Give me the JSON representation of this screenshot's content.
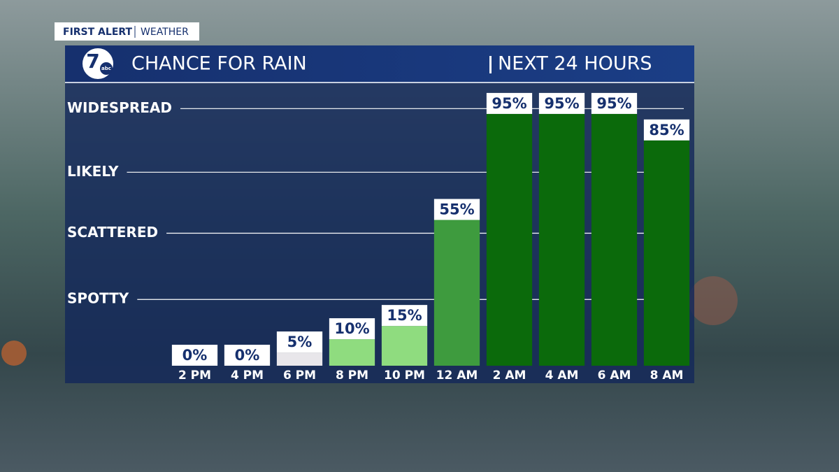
{
  "header": {
    "brand": "FIRST ALERT",
    "section": "WEATHER",
    "logo_number": "7",
    "logo_text": "abc"
  },
  "chart_data": {
    "type": "bar",
    "title": "CHANCE FOR RAIN",
    "subtitle": "NEXT 24 HOURS",
    "categories": [
      "2 PM",
      "4 PM",
      "6 PM",
      "8 PM",
      "10 PM",
      "12 AM",
      "2 AM",
      "4 AM",
      "6 AM",
      "8 AM"
    ],
    "values": [
      0,
      0,
      5,
      10,
      15,
      55,
      95,
      95,
      95,
      85
    ],
    "value_labels": [
      "0%",
      "0%",
      "5%",
      "10%",
      "15%",
      "55%",
      "95%",
      "95%",
      "95%",
      "85%"
    ],
    "colors": [
      "#e8e6ea",
      "#e8e6ea",
      "#e8e6ea",
      "#8fdc7f",
      "#8fdc7f",
      "#3e9b3e",
      "#0b6a0b",
      "#0b6a0b",
      "#0b6a0b",
      "#0b6a0b"
    ],
    "ylim": [
      0,
      105
    ],
    "yticks": [
      {
        "value": 25,
        "label": "SPOTTY"
      },
      {
        "value": 50,
        "label": "SCATTERED"
      },
      {
        "value": 73,
        "label": "LIKELY"
      },
      {
        "value": 97,
        "label": "WIDESPREAD"
      }
    ],
    "grid": true
  }
}
